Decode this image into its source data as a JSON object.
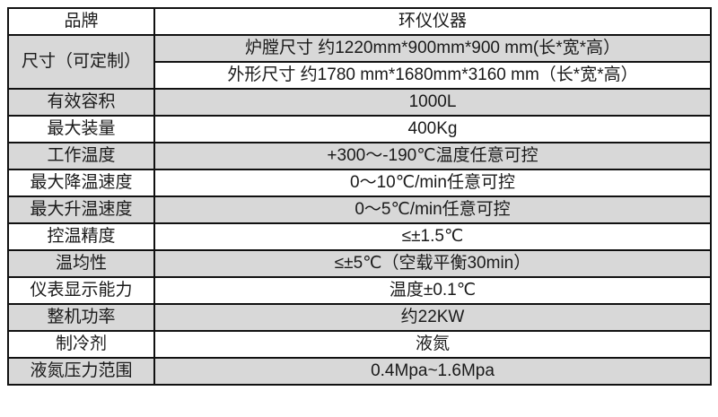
{
  "colors": {
    "row_gray": "#d8d8d8",
    "row_white": "#ffffff",
    "border": "#111111",
    "text": "#1a1a1a"
  },
  "spec_table": {
    "rows": [
      {
        "label": "品牌",
        "value": "环仪仪器"
      },
      {
        "label": "尺寸（可定制）",
        "value": "炉膛尺寸 约1220mm*900mm*900 mm(长*宽*高）",
        "label_rowspan": 2
      },
      {
        "value": "外形尺寸 约1780 mm*1680mm*3160 mm（长*宽*高）"
      },
      {
        "label": "有效容积",
        "value": "1000L"
      },
      {
        "label": "最大装量",
        "value": "400Kg"
      },
      {
        "label": "工作温度",
        "value": "+300～-190℃温度任意可控"
      },
      {
        "label": "最大降温速度",
        "value": "0～10℃/min任意可控"
      },
      {
        "label": "最大升温速度",
        "value": "0～5℃/min任意可控"
      },
      {
        "label": "控温精度",
        "value": "≤±1.5℃"
      },
      {
        "label": "温均性",
        "value": "≤±5℃（空载平衡30min）"
      },
      {
        "label": "仪表显示能力",
        "value": "温度±0.1℃"
      },
      {
        "label": "整机功率",
        "value": "约22KW"
      },
      {
        "label": "制冷剂",
        "value": "液氮"
      },
      {
        "label": "液氮压力范围",
        "value": "0.4Mpa~1.6Mpa"
      }
    ]
  }
}
